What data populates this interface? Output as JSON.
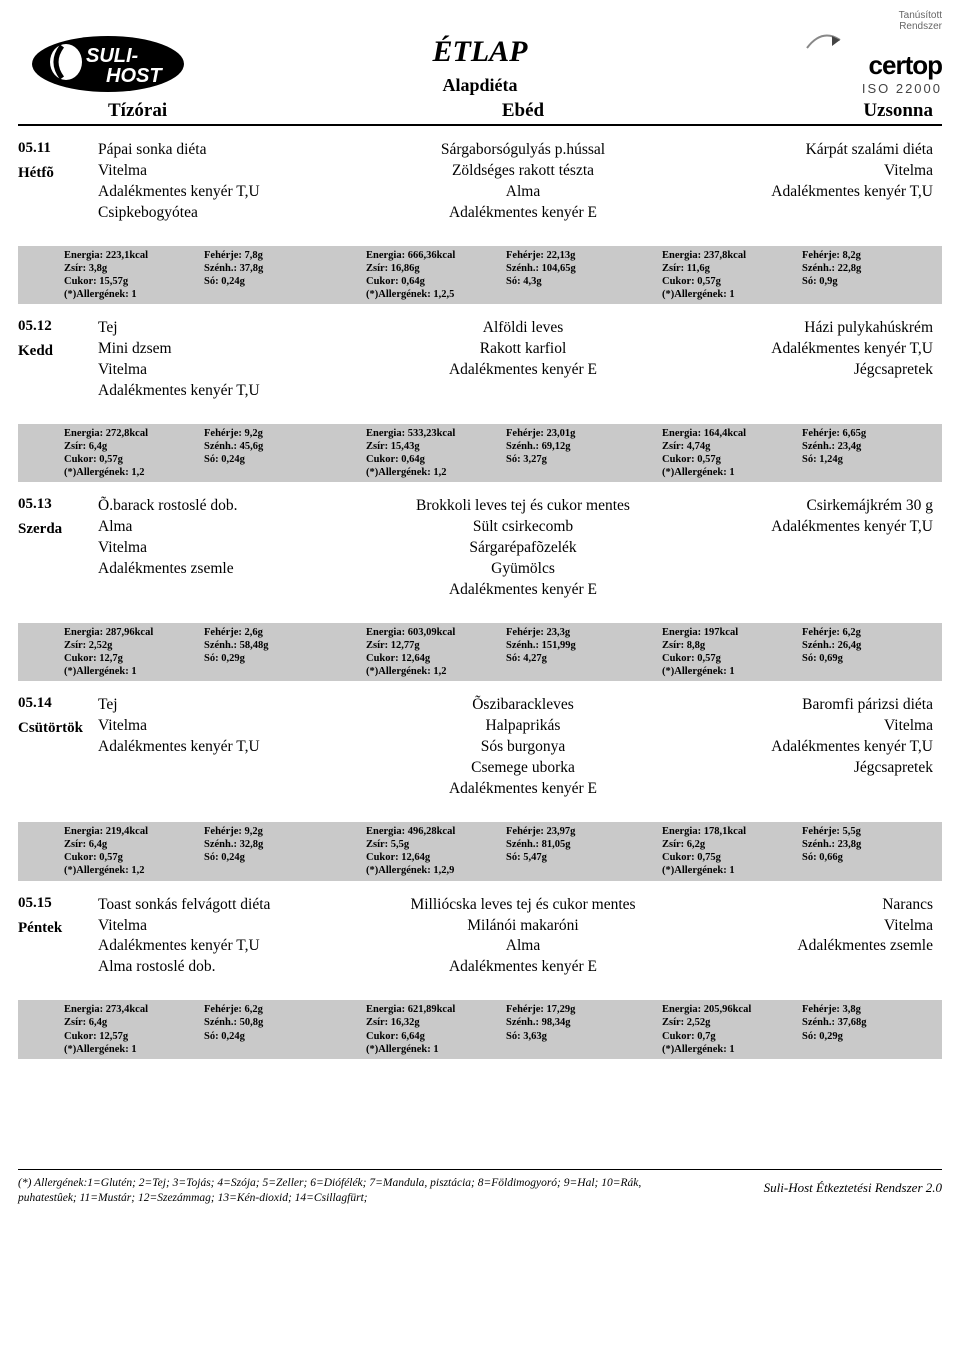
{
  "title": "ÉTLAP",
  "subtitle": "Alapdiéta",
  "logo_left": {
    "line1": "SULI-",
    "line2": "HOST"
  },
  "logo_right": {
    "small1": "Tanúsított",
    "small2": "Rendszer",
    "brand": "certop",
    "iso": "ISO 22000"
  },
  "meal_headers": {
    "tizorai": "Tízórai",
    "ebed": "Ebéd",
    "uzsonna": "Uzsonna"
  },
  "days": [
    {
      "date": "05.11",
      "name": "Hétfõ",
      "tizorai": [
        "Pápai sonka diéta",
        "Vitelma",
        "Adalékmentes kenyér T,U",
        "Csipkebogyótea"
      ],
      "ebed": [
        "Sárgaborsógulyás  p.hússal",
        "Zöldséges rakott tészta",
        "Alma",
        "Adalékmentes kenyér E"
      ],
      "uzsonna": [
        "Kárpát szalámi  diéta",
        "Vitelma",
        "Adalékmentes kenyér T,U"
      ],
      "nut": {
        "t": {
          "energia": "223,1kcal",
          "zsir": "3,8g",
          "cukor": "15,57g",
          "allerg": "1",
          "feherje": "7,8g",
          "szenh": "37,8g",
          "so": "0,24g"
        },
        "e": {
          "energia": "666,36kcal",
          "zsir": "16,86g",
          "cukor": "0,64g",
          "allerg": "1,2,5",
          "feherje": "22,13g",
          "szenh": "104,65g",
          "so": "4,3g"
        },
        "u": {
          "energia": "237,8kcal",
          "zsir": "11,6g",
          "cukor": "0,57g",
          "allerg": "1",
          "feherje": "8,2g",
          "szenh": "22,8g",
          "so": "0,9g"
        }
      }
    },
    {
      "date": "05.12",
      "name": "Kedd",
      "tizorai": [
        "Tej",
        "Mini dzsem",
        "Vitelma",
        "Adalékmentes kenyér T,U"
      ],
      "ebed": [
        "Alföldi leves",
        "Rakott karfiol",
        "Adalékmentes kenyér E"
      ],
      "uzsonna": [
        "Házi pulykahúskrém",
        "Adalékmentes kenyér T,U",
        "Jégcsapretek"
      ],
      "nut": {
        "t": {
          "energia": "272,8kcal",
          "zsir": "6,4g",
          "cukor": "0,57g",
          "allerg": "1,2",
          "feherje": "9,2g",
          "szenh": "45,6g",
          "so": "0,24g"
        },
        "e": {
          "energia": "533,23kcal",
          "zsir": "15,43g",
          "cukor": "0,64g",
          "allerg": "1,2",
          "feherje": "23,01g",
          "szenh": "69,12g",
          "so": "3,27g"
        },
        "u": {
          "energia": "164,4kcal",
          "zsir": "4,74g",
          "cukor": "0,57g",
          "allerg": "1",
          "feherje": "6,65g",
          "szenh": "23,4g",
          "so": "1,24g"
        }
      }
    },
    {
      "date": "05.13",
      "name": "Szerda",
      "tizorai": [
        "Õ.barack rostoslé dob.",
        "Alma",
        "Vitelma",
        "Adalékmentes zsemle"
      ],
      "ebed": [
        "Brokkoli leves tej és cukor mentes",
        "Sült csirkecomb",
        "Sárgarépafõzelék",
        "Gyümölcs",
        "Adalékmentes kenyér E"
      ],
      "uzsonna": [
        "Csirkemájkrém 30 g",
        "Adalékmentes kenyér T,U"
      ],
      "nut": {
        "t": {
          "energia": "287,96kcal",
          "zsir": "2,52g",
          "cukor": "12,7g",
          "allerg": "1",
          "feherje": "2,6g",
          "szenh": "58,48g",
          "so": "0,29g"
        },
        "e": {
          "energia": "603,09kcal",
          "zsir": "12,77g",
          "cukor": "12,64g",
          "allerg": "1,2",
          "feherje": "23,3g",
          "szenh": "151,99g",
          "so": "4,27g"
        },
        "u": {
          "energia": "197kcal",
          "zsir": "8,8g",
          "cukor": "0,57g",
          "allerg": "1",
          "feherje": "6,2g",
          "szenh": "26,4g",
          "so": "0,69g"
        }
      }
    },
    {
      "date": "05.14",
      "name": "Csütörtök",
      "tizorai": [
        "Tej",
        "Vitelma",
        "Adalékmentes kenyér T,U"
      ],
      "ebed": [
        "Õszibarackleves",
        "Halpaprikás",
        "Sós burgonya",
        "Csemege uborka",
        "Adalékmentes kenyér E"
      ],
      "uzsonna": [
        "Baromfi párizsi diéta",
        "Vitelma",
        "Adalékmentes kenyér T,U",
        "Jégcsapretek"
      ],
      "nut": {
        "t": {
          "energia": "219,4kcal",
          "zsir": "6,4g",
          "cukor": "0,57g",
          "allerg": "1,2",
          "feherje": "9,2g",
          "szenh": "32,8g",
          "so": "0,24g"
        },
        "e": {
          "energia": "496,28kcal",
          "zsir": "5,5g",
          "cukor": "12,64g",
          "allerg": "1,2,9",
          "feherje": "23,97g",
          "szenh": "81,05g",
          "so": "5,47g"
        },
        "u": {
          "energia": "178,1kcal",
          "zsir": "6,2g",
          "cukor": "0,75g",
          "allerg": "1",
          "feherje": "5,5g",
          "szenh": "23,8g",
          "so": "0,66g"
        }
      }
    },
    {
      "date": "05.15",
      "name": "Péntek",
      "tizorai": [
        "Toast sonkás felvágott diéta",
        "Vitelma",
        "Adalékmentes kenyér T,U",
        "Alma rostoslé dob."
      ],
      "ebed": [
        "Milliócska leves tej és cukor mentes",
        "Milánói makaróni",
        "Alma",
        "Adalékmentes kenyér E"
      ],
      "uzsonna": [
        "Narancs",
        "Vitelma",
        "Adalékmentes zsemle"
      ],
      "nut": {
        "t": {
          "energia": "273,4kcal",
          "zsir": "6,4g",
          "cukor": "12,57g",
          "allerg": "1",
          "feherje": "6,2g",
          "szenh": "50,8g",
          "so": "0,24g"
        },
        "e": {
          "energia": "621,89kcal",
          "zsir": "16,32g",
          "cukor": "6,64g",
          "allerg": "1",
          "feherje": "17,29g",
          "szenh": "98,34g",
          "so": "3,63g"
        },
        "u": {
          "energia": "205,96kcal",
          "zsir": "2,52g",
          "cukor": "0,7g",
          "allerg": "1",
          "feherje": "3,8g",
          "szenh": "37,68g",
          "so": "0,29g"
        }
      }
    }
  ],
  "nut_labels": {
    "energia": "Energia:",
    "zsir": "Zsír:",
    "cukor": "Cukor:",
    "allerg": "(*)Allergének:",
    "feherje": "Fehérje:",
    "szenh": "Szénh.:",
    "so": "Só:"
  },
  "footer_note": "(*) Allergének:1=Glutén; 2=Tej; 3=Tojás; 4=Szója; 5=Zeller; 6=Diófélék; 7=Mandula, pisztácia; 8=Földimogyoró; 9=Hal; 10=Rák, puhatestûek; 11=Mustár; 12=Szezámmag; 13=Kén-dioxid; 14=Csillagfürt;",
  "system_name": "Suli-Host Étkeztetési Rendszer 2.0",
  "colors": {
    "nut_bg": "#c9c9c9"
  }
}
